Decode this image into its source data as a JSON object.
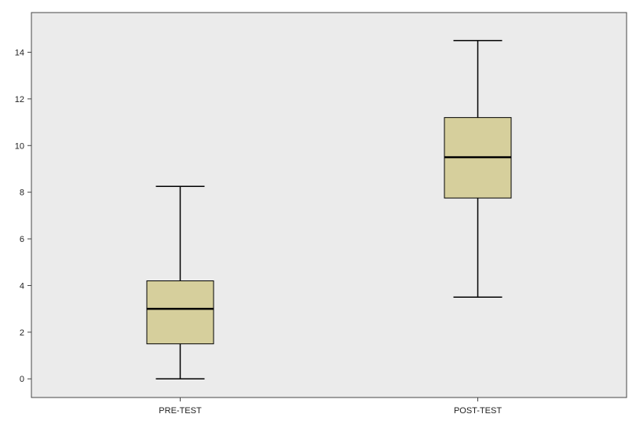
{
  "chart_data": {
    "type": "boxplot",
    "categories": [
      "PRE-TEST",
      "POST-TEST"
    ],
    "boxes": [
      {
        "category": "PRE-TEST",
        "min": 0,
        "q1": 1.5,
        "median": 3,
        "q3": 4.2,
        "max": 8.25
      },
      {
        "category": "POST-TEST",
        "min": 3.5,
        "q1": 7.75,
        "median": 9.5,
        "q3": 11.2,
        "max": 14.5
      }
    ],
    "yticks": [
      "0",
      "2",
      "4",
      "6",
      "8",
      "10",
      "12",
      "14"
    ],
    "ylim": [
      -0.8,
      15.7
    ],
    "grid": false,
    "legend": "none",
    "colors": {
      "plot_background": "#ebebeb",
      "box_fill": "#d6cf9c",
      "stroke": "#000000"
    }
  }
}
